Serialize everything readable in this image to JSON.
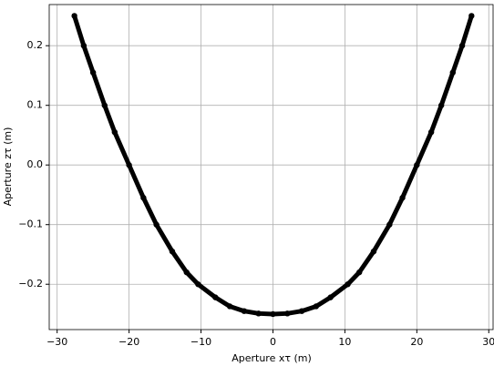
{
  "chart_data": {
    "type": "scatter",
    "xlabel": "Aperture xτ (m)",
    "ylabel": "Aperture zτ (m)",
    "x": [
      -27.6,
      -26.3,
      -25,
      -23.4,
      -22,
      -20,
      -18,
      -16.2,
      -14,
      -12,
      -10.4,
      -8,
      -6,
      -4,
      -2,
      0,
      2,
      4,
      6,
      8,
      10.4,
      12,
      14,
      16.2,
      18,
      20,
      22,
      23.4,
      25,
      26.3,
      27.6
    ],
    "series": [
      {
        "color": "#000000",
        "values": [
          0.25,
          0.2,
          0.155,
          0.1,
          0.055,
          0,
          -0.055,
          -0.1,
          -0.145,
          -0.18,
          -0.2,
          -0.222,
          -0.237,
          -0.245,
          -0.249,
          -0.25,
          -0.249,
          -0.245,
          -0.237,
          -0.222,
          -0.2,
          -0.18,
          -0.145,
          -0.1,
          -0.055,
          0,
          0.055,
          0.1,
          0.155,
          0.2,
          0.25
        ]
      }
    ],
    "xlim": [
      -31.1,
      30.6
    ],
    "ylim": [
      -0.276,
      0.269
    ],
    "xticks": [
      {
        "value": -30,
        "label": "−30"
      },
      {
        "value": -20,
        "label": "−20"
      },
      {
        "value": -10,
        "label": "−10"
      },
      0,
      10,
      20,
      30
    ],
    "yticks": [
      {
        "value": -0.2,
        "label": "−0.2"
      },
      {
        "value": -0.1,
        "label": "−0.1"
      },
      {
        "value": 0,
        "label": "0.0"
      },
      0.1,
      0.2
    ],
    "grid": true
  }
}
